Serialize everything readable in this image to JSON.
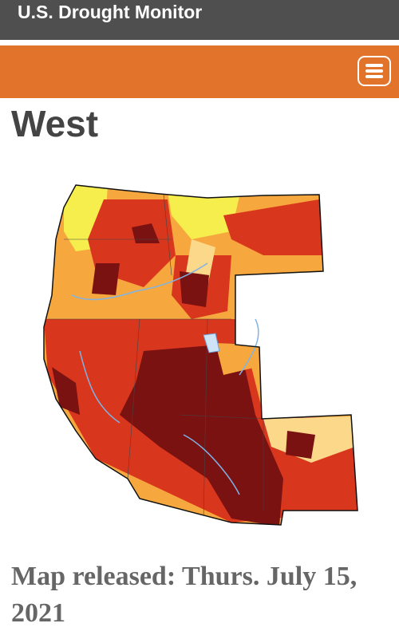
{
  "header": {
    "title": "U.S. Drought Monitor"
  },
  "region": {
    "title": "West"
  },
  "map": {
    "caption": "Map released: Thurs. July 15, 2021"
  }
}
